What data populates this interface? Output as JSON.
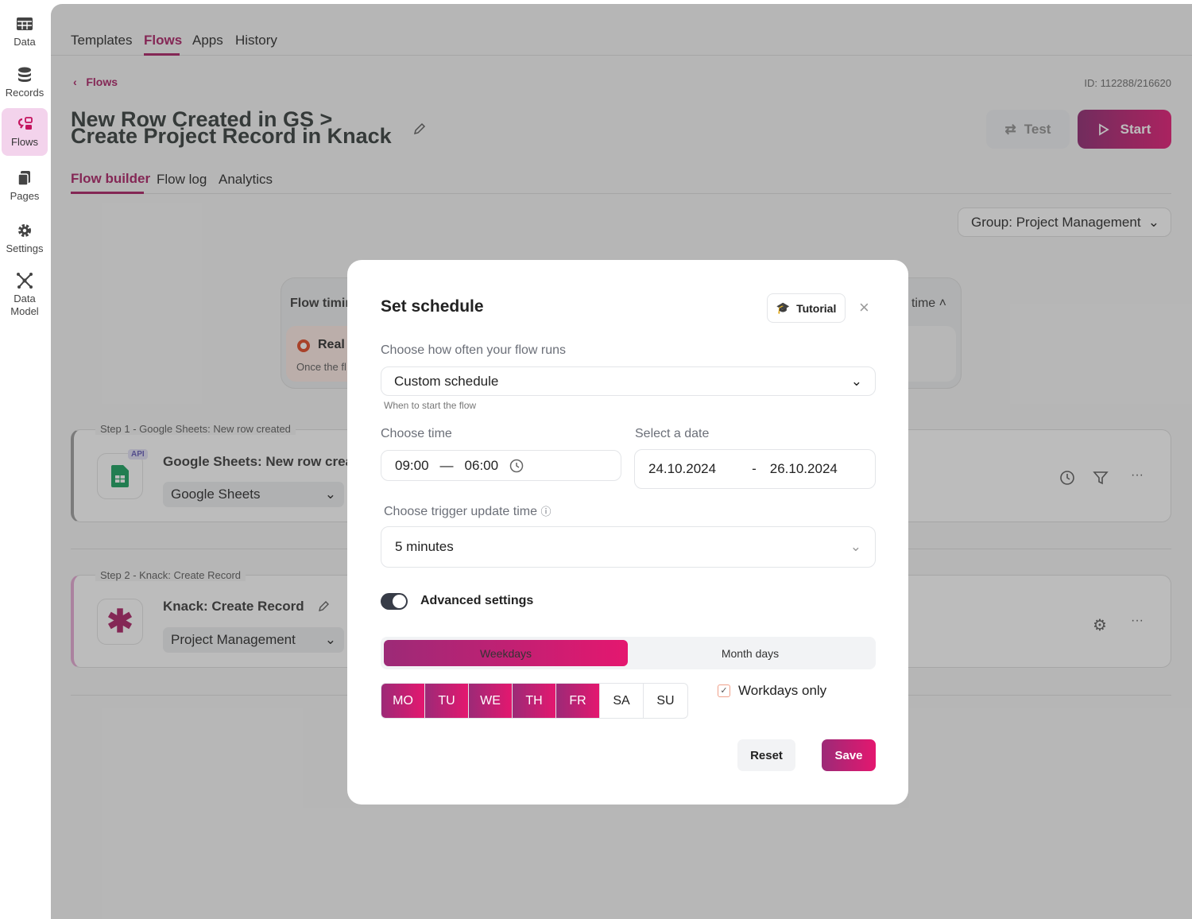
{
  "sidebar": {
    "items": [
      {
        "label": "Data",
        "icon": "table-icon"
      },
      {
        "label": "Records",
        "icon": "database-icon"
      },
      {
        "label": "Flows",
        "icon": "flows-icon",
        "active": true
      },
      {
        "label": "Pages",
        "icon": "pages-icon"
      },
      {
        "label": "Settings",
        "icon": "gear-icon"
      },
      {
        "label": "Data Model",
        "icon": "data-model-icon"
      }
    ]
  },
  "topnav": {
    "tabs": [
      "Templates",
      "Flows",
      "Apps",
      "History"
    ],
    "active": "Flows"
  },
  "breadcrumb": {
    "back": "Flows"
  },
  "flow": {
    "id": "ID: 112288/216620",
    "title": "New Row Created in GS > Create Project Record in Knack",
    "test": "Test",
    "start": "Start",
    "tabs": [
      "Flow builder",
      "Flow log",
      "Analytics"
    ],
    "group": "Group: Project Management"
  },
  "timing": {
    "title": "Flow timir",
    "right_title": "time",
    "option": "Real",
    "desc": "Once the fl"
  },
  "steps": [
    {
      "label": "Step 1 - Google Sheets: New row created",
      "name": "Google Sheets: New row create",
      "badge": "API",
      "select": "Google Sheets"
    },
    {
      "label": "Step 2 - Knack: Create Record",
      "name": "Knack: Create Record",
      "select": "Project Management"
    }
  ],
  "modal": {
    "title": "Set schedule",
    "tutorial": "Tutorial",
    "freq_label": "Choose how often your flow runs",
    "freq_value": "Custom schedule",
    "freq_hint": "When to start the flow",
    "time_label": "Choose time",
    "time_from": "09:00",
    "time_sep": "—",
    "time_to": "06:00",
    "date_label": "Select a date",
    "date_from": "24.10.2024",
    "date_sep": "-",
    "date_to": "26.10.2024",
    "trigger_label": "Choose trigger update time",
    "trigger_value": "5 minutes",
    "advanced_label": "Advanced settings",
    "advanced_on": true,
    "seg": [
      "Weekdays",
      "Month days"
    ],
    "seg_active": "Weekdays",
    "days": [
      {
        "d": "MO",
        "on": true
      },
      {
        "d": "TU",
        "on": true
      },
      {
        "d": "WE",
        "on": true
      },
      {
        "d": "TH",
        "on": true
      },
      {
        "d": "FR",
        "on": true
      },
      {
        "d": "SA",
        "on": false
      },
      {
        "d": "SU",
        "on": false
      }
    ],
    "workdays_label": "Workdays only",
    "workdays_checked": true,
    "reset": "Reset",
    "save": "Save"
  },
  "colors": {
    "accent": "#a8175f",
    "gradient_start": "#8a1f6b",
    "gradient_end": "#e4106f"
  }
}
